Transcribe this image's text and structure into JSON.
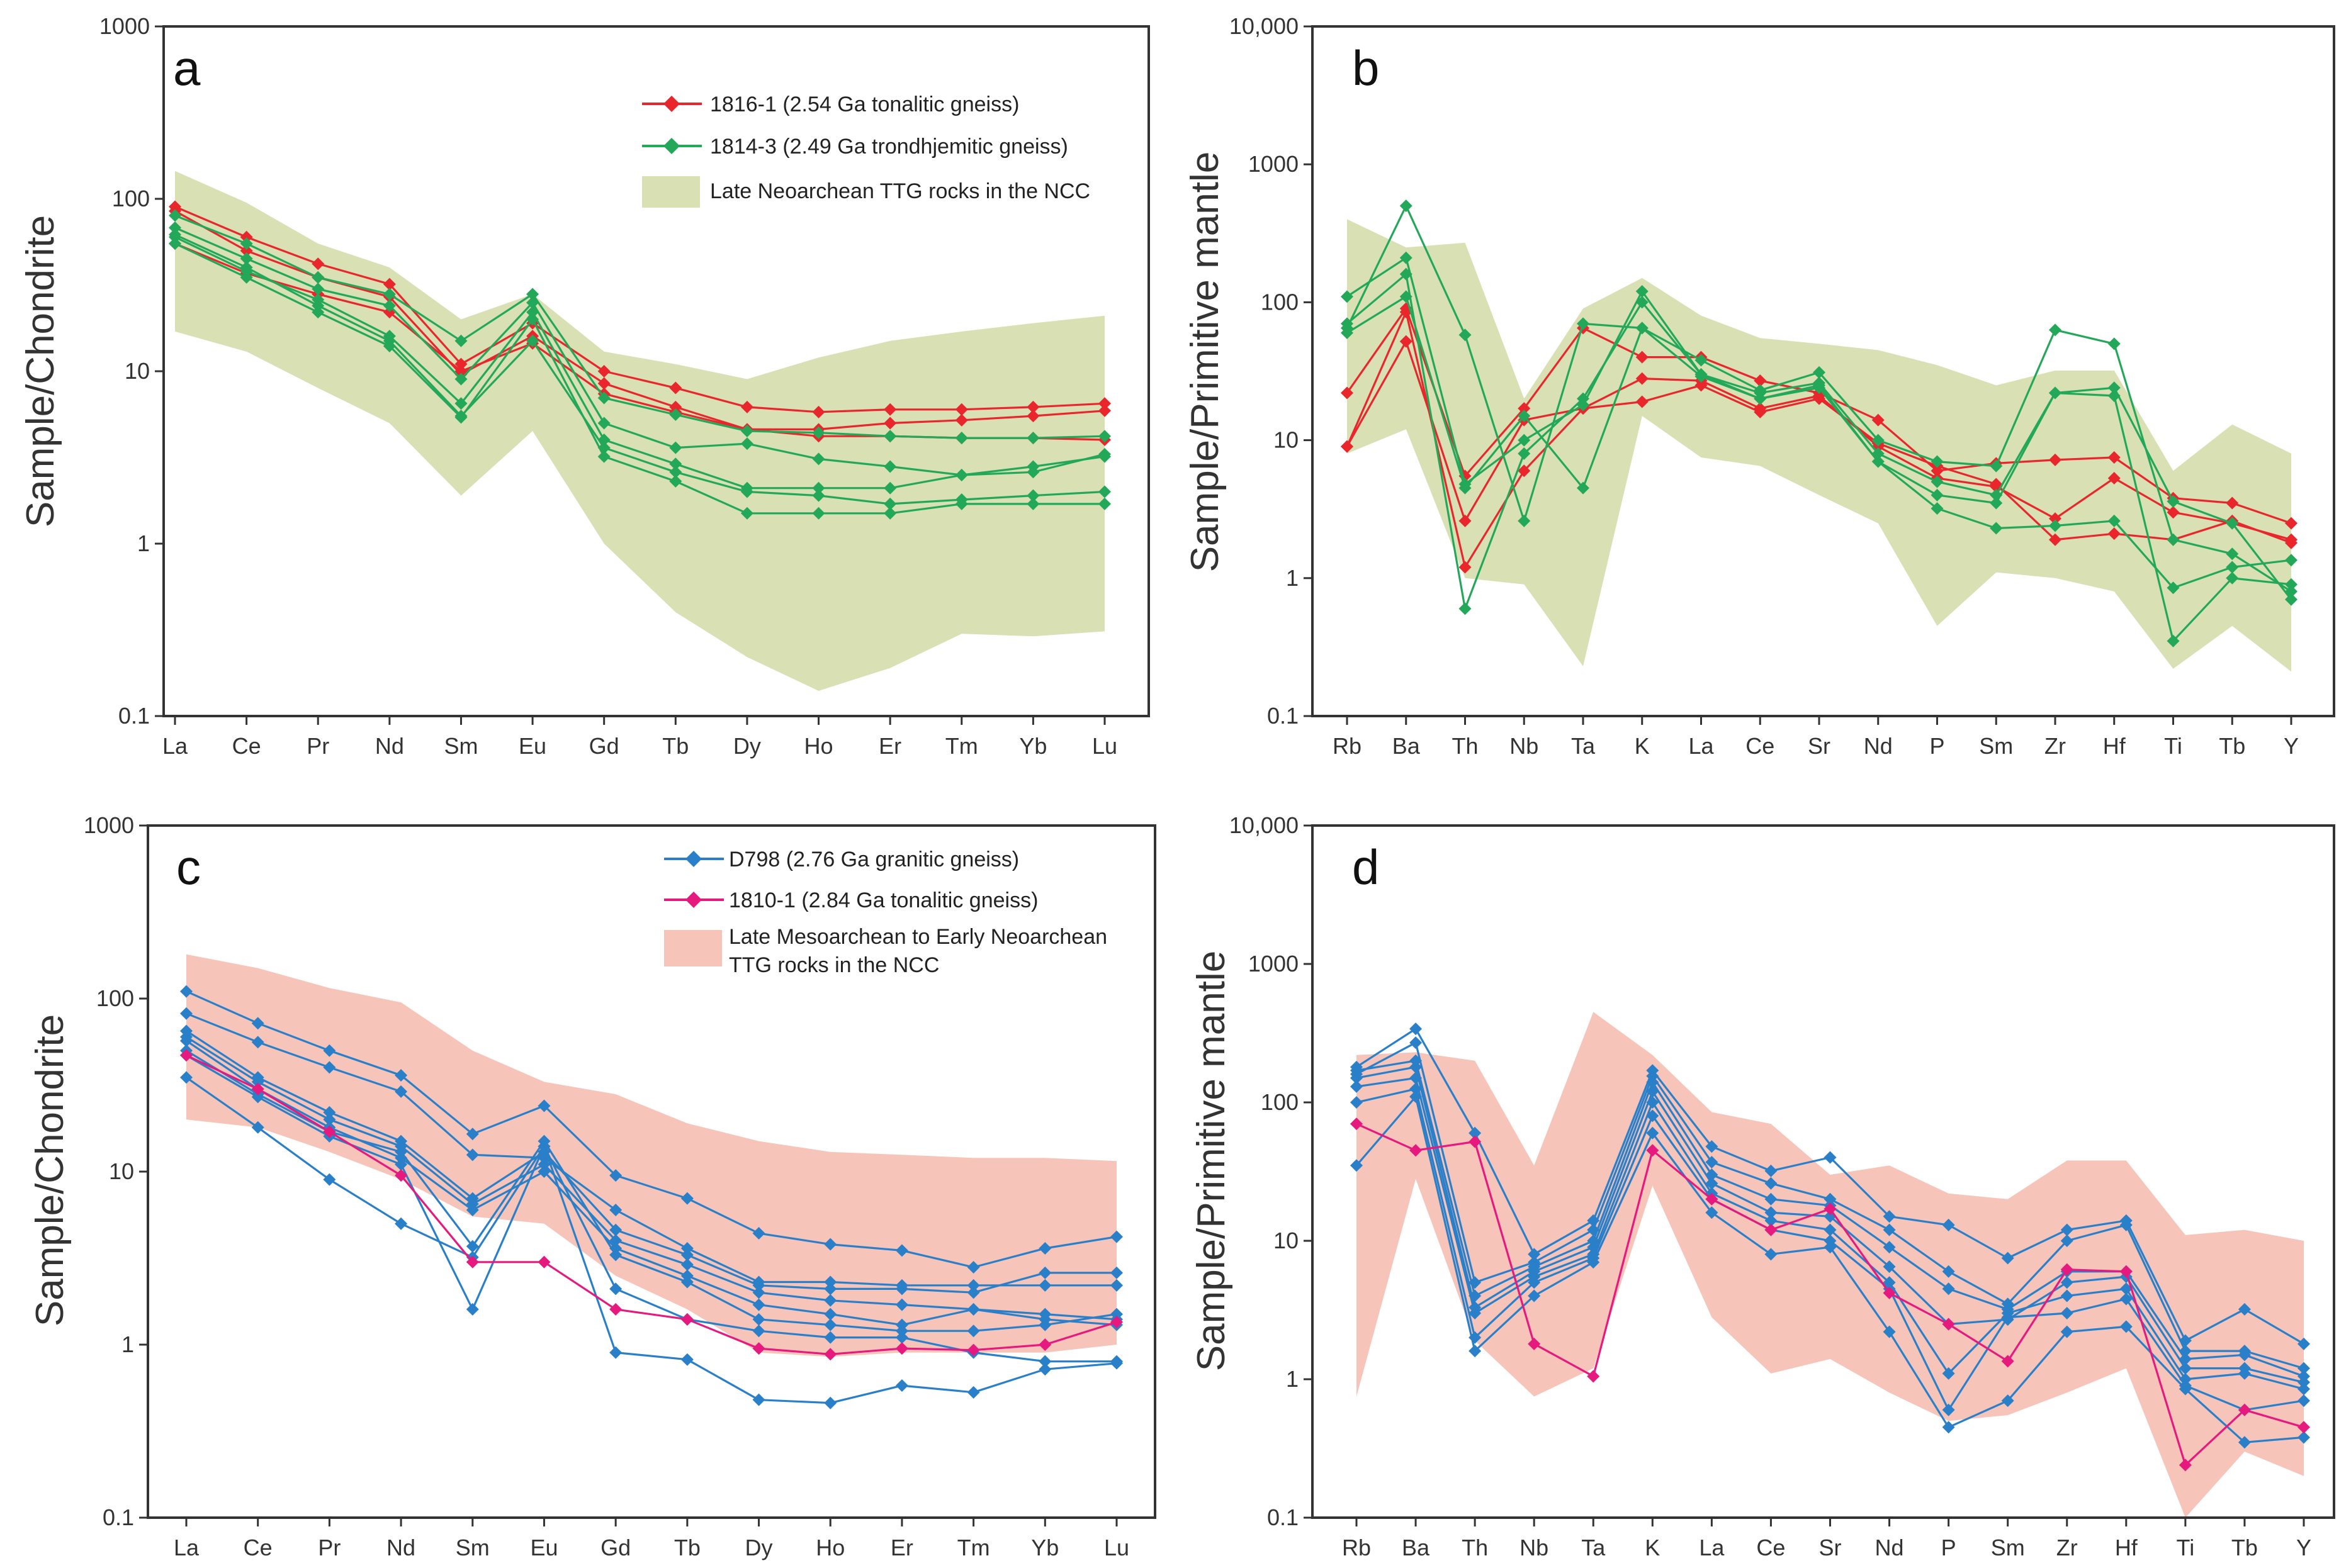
{
  "colors": {
    "red": "#e8262b",
    "green": "#23a85a",
    "blue": "#2a7fc9",
    "magenta": "#e6197f",
    "olive_band": "#d8e0b4",
    "pink_band": "#f7c4ba",
    "frame": "#333333"
  },
  "chart_data": [
    {
      "panel": "a",
      "type": "line",
      "yscale": "log",
      "ylabel": "Sample/Chondrite",
      "y_ticks": [
        "0.1",
        "1",
        "10",
        "100",
        "1000"
      ],
      "ylim": [
        0.1,
        1000
      ],
      "categories": [
        "La",
        "Ce",
        "Pr",
        "Nd",
        "Sm",
        "Eu",
        "Gd",
        "Tb",
        "Dy",
        "Ho",
        "Er",
        "Tm",
        "Yb",
        "Lu"
      ],
      "band": {
        "name": "Late Neoarchean TTG rocks in the NCC",
        "color": "#d8e0b4",
        "upper": [
          145,
          95,
          55,
          40,
          20,
          28,
          13,
          11,
          9,
          12,
          15,
          17,
          19,
          21
        ],
        "lower": [
          17,
          13,
          8,
          5,
          1.9,
          4.5,
          1,
          0.4,
          0.22,
          0.14,
          0.19,
          0.3,
          0.29,
          0.31
        ]
      },
      "legend": [
        {
          "label": "1816-1 (2.54 Ga tonalitic gneiss)",
          "color": "#e8262b",
          "type": "line"
        },
        {
          "label": "1814-3 (2.49 Ga trondhjemitic gneiss)",
          "color": "#23a85a",
          "type": "line"
        },
        {
          "label": "Late Neoarchean TTG rocks in the NCC",
          "color": "#d8e0b4",
          "type": "band"
        }
      ],
      "series": [
        {
          "name": "1816-1",
          "color": "#e8262b",
          "values": [
            90,
            60,
            42,
            32,
            11,
            19,
            10,
            8,
            6.2,
            5.8,
            6,
            6,
            6.2,
            6.5
          ]
        },
        {
          "name": "1816-1",
          "color": "#e8262b",
          "values": [
            85,
            50,
            35,
            27,
            9.6,
            16,
            8.5,
            6.2,
            4.6,
            4.6,
            5,
            5.2,
            5.5,
            5.9
          ]
        },
        {
          "name": "1816-1",
          "color": "#e8262b",
          "values": [
            55,
            37,
            28,
            22,
            10,
            14.5,
            7.4,
            5.8,
            4.6,
            4.2,
            4.2,
            4.1,
            4.1,
            4.0
          ]
        },
        {
          "name": "1814-3",
          "color": "#23a85a",
          "values": [
            80,
            55,
            35,
            28,
            15,
            28,
            7,
            5.6,
            4.5,
            4.4,
            4.2,
            4.1,
            4.1,
            4.2
          ]
        },
        {
          "name": "1814-3",
          "color": "#23a85a",
          "values": [
            68,
            45,
            30,
            24,
            9,
            25,
            5,
            3.6,
            3.8,
            3.1,
            2.8,
            2.5,
            2.8,
            3.2
          ]
        },
        {
          "name": "1814-3",
          "color": "#23a85a",
          "values": [
            60,
            38,
            26,
            16,
            6.5,
            22,
            4,
            2.9,
            2.1,
            2.1,
            2.1,
            2.5,
            2.6,
            3.3
          ]
        },
        {
          "name": "1814-3",
          "color": "#23a85a",
          "values": [
            55,
            35,
            22,
            14,
            5.4,
            20,
            3.2,
            2.3,
            1.5,
            1.5,
            1.5,
            1.7,
            1.7,
            1.7
          ]
        },
        {
          "name": "1814-3",
          "color": "#23a85a",
          "values": [
            62,
            40,
            24,
            15,
            5.5,
            15,
            3.6,
            2.6,
            2.0,
            1.9,
            1.7,
            1.8,
            1.9,
            2.0
          ]
        }
      ]
    },
    {
      "panel": "b",
      "type": "line",
      "yscale": "log",
      "ylabel": "Sample/Primitive mantle",
      "y_ticks": [
        "0.1",
        "1",
        "10",
        "100",
        "1000",
        "10,000"
      ],
      "ylim": [
        0.1,
        10000
      ],
      "categories": [
        "Rb",
        "Ba",
        "Th",
        "Nb",
        "Ta",
        "K",
        "La",
        "Ce",
        "Sr",
        "Nd",
        "P",
        "Sm",
        "Zr",
        "Hf",
        "Ti",
        "Tb",
        "Y"
      ],
      "band": {
        "color": "#d8e0b4",
        "upper": [
          400,
          250,
          270,
          20,
          90,
          150,
          80,
          55,
          50,
          45,
          35,
          25,
          32,
          32,
          6,
          13,
          8
        ],
        "lower": [
          8,
          12,
          1.0,
          0.9,
          0.23,
          15,
          7.5,
          6.5,
          4,
          2.5,
          0.45,
          1.1,
          1.0,
          0.8,
          0.22,
          0.45,
          0.21
        ]
      },
      "series": [
        {
          "name": "1816-1",
          "color": "#e8262b",
          "values": [
            22,
            90,
            5.5,
            17,
            65,
            40,
            40,
            27,
            22,
            14,
            6.0,
            6.8,
            7.2,
            7.5,
            3.8,
            3.5,
            2.5
          ]
        },
        {
          "name": "1816-1",
          "color": "#e8262b",
          "values": [
            9,
            52,
            2.6,
            14,
            17,
            28,
            27,
            17,
            21,
            9,
            5.3,
            4.6,
            2.7,
            5.3,
            3.0,
            2.5,
            1.9
          ]
        },
        {
          "name": "1816-1",
          "color": "#e8262b",
          "values": [
            9,
            85,
            1.2,
            6,
            17,
            19,
            25,
            16,
            20,
            9.5,
            6.5,
            4.8,
            1.9,
            2.1,
            1.9,
            2.6,
            1.8
          ]
        },
        {
          "name": "1814-3",
          "color": "#23a85a",
          "values": [
            65,
            500,
            58,
            2.6,
            70,
            65,
            38,
            23,
            31,
            10,
            7,
            6.5,
            63,
            50,
            1.9,
            1.5,
            0.8
          ]
        },
        {
          "name": "1814-3",
          "color": "#23a85a",
          "values": [
            110,
            210,
            4.8,
            10,
            18,
            120,
            30,
            22,
            26,
            8,
            5,
            4,
            22,
            24,
            3.6,
            2.5,
            0.7
          ]
        },
        {
          "name": "1814-3",
          "color": "#23a85a",
          "values": [
            70,
            160,
            0.6,
            8,
            20,
            100,
            30,
            20,
            25,
            7,
            4,
            3.5,
            22,
            21,
            0.35,
            1.0,
            0.9
          ]
        },
        {
          "name": "1814-3",
          "color": "#23a85a",
          "values": [
            60,
            110,
            4.5,
            15,
            4.5,
            65,
            29,
            20,
            24,
            7,
            3.2,
            2.3,
            2.4,
            2.6,
            0.85,
            1.2,
            1.35
          ]
        }
      ]
    },
    {
      "panel": "c",
      "type": "line",
      "yscale": "log",
      "ylabel": "Sample/Chondrite",
      "y_ticks": [
        "0.1",
        "1",
        "10",
        "100",
        "1000"
      ],
      "ylim": [
        0.1,
        1000
      ],
      "categories": [
        "La",
        "Ce",
        "Pr",
        "Nd",
        "Sm",
        "Eu",
        "Gd",
        "Tb",
        "Dy",
        "Ho",
        "Er",
        "Tm",
        "Yb",
        "Lu"
      ],
      "band": {
        "name": "Late Mesoarchean to Early Neoarchean TTG rocks in the NCC",
        "color": "#f7c4ba",
        "upper": [
          180,
          150,
          115,
          95,
          50,
          33,
          28,
          19,
          15,
          13,
          12.5,
          12,
          12,
          11.5
        ],
        "lower": [
          20,
          18,
          13,
          9,
          5.5,
          5.0,
          2.5,
          1.6,
          0.9,
          0.85,
          0.9,
          0.9,
          0.9,
          1.0
        ]
      },
      "legend": [
        {
          "label": "D798 (2.76 Ga granitic gneiss)",
          "color": "#2a7fc9",
          "type": "line"
        },
        {
          "label": "1810-1 (2.84 Ga tonalitic gneiss)",
          "color": "#e6197f",
          "type": "line"
        },
        {
          "label": "Late Mesoarchean to Early Neoarchean",
          "label2": "TTG rocks in the NCC",
          "color": "#f7c4ba",
          "type": "band"
        }
      ],
      "series": [
        {
          "name": "D798",
          "color": "#2a7fc9",
          "values": [
            110,
            72,
            50,
            36,
            16.5,
            24,
            9.5,
            7,
            4.4,
            3.8,
            3.5,
            2.8,
            3.6,
            4.2
          ]
        },
        {
          "name": "D798",
          "color": "#2a7fc9",
          "values": [
            82,
            56,
            40,
            29,
            12.5,
            12,
            6.0,
            3.6,
            2.3,
            2.3,
            2.2,
            2.2,
            2.2,
            2.2
          ]
        },
        {
          "name": "D798",
          "color": "#2a7fc9",
          "values": [
            65,
            35,
            22,
            15,
            7.0,
            13,
            4.6,
            3.3,
            2.2,
            2.1,
            2.1,
            2.0,
            2.6,
            2.6
          ]
        },
        {
          "name": "D798",
          "color": "#2a7fc9",
          "values": [
            60,
            33,
            20,
            14,
            6.5,
            11,
            4.0,
            2.9,
            2.0,
            1.8,
            1.7,
            1.6,
            1.4,
            1.3
          ]
        },
        {
          "name": "D798",
          "color": "#2a7fc9",
          "values": [
            57,
            30,
            18,
            12,
            6.0,
            10,
            3.6,
            2.5,
            1.7,
            1.5,
            1.3,
            1.6,
            1.5,
            1.4
          ]
        },
        {
          "name": "D798",
          "color": "#2a7fc9",
          "values": [
            50,
            28,
            17,
            13,
            3.7,
            15,
            3.3,
            2.3,
            1.4,
            1.3,
            1.2,
            1.2,
            1.3,
            1.5
          ]
        },
        {
          "name": "D798",
          "color": "#2a7fc9",
          "values": [
            47,
            27,
            16,
            11,
            1.6,
            14,
            2.1,
            1.4,
            1.2,
            1.1,
            1.1,
            0.9,
            0.8,
            0.8
          ]
        },
        {
          "name": "D798",
          "color": "#2a7fc9",
          "values": [
            35,
            18,
            9,
            5,
            3.2,
            14,
            0.9,
            0.82,
            0.48,
            0.46,
            0.58,
            0.53,
            0.72,
            0.78
          ]
        },
        {
          "name": "1810-1",
          "color": "#e6197f",
          "values": [
            47,
            30,
            17,
            9.5,
            3.0,
            3.0,
            1.6,
            1.4,
            0.95,
            0.88,
            0.95,
            0.93,
            1.0,
            1.35
          ]
        }
      ]
    },
    {
      "panel": "d",
      "type": "line",
      "yscale": "log",
      "ylabel": "Sample/Primitive mantle",
      "y_ticks": [
        "0.1",
        "1",
        "10",
        "100",
        "1000",
        "10,000"
      ],
      "ylim": [
        0.1,
        10000
      ],
      "categories": [
        "Rb",
        "Ba",
        "Th",
        "Nb",
        "Ta",
        "K",
        "La",
        "Ce",
        "Sr",
        "Nd",
        "P",
        "Sm",
        "Zr",
        "Hf",
        "Ti",
        "Tb",
        "Y"
      ],
      "band": {
        "color": "#f7c4ba",
        "upper": [
          220,
          230,
          200,
          35,
          450,
          220,
          85,
          70,
          30,
          35,
          22,
          20,
          38,
          38,
          11,
          12,
          10
        ],
        "lower": [
          0.75,
          28,
          1.9,
          0.75,
          1.2,
          25,
          2.8,
          1.1,
          1.4,
          0.8,
          0.5,
          0.55,
          0.8,
          1.2,
          0.1,
          0.3,
          0.2
        ]
      },
      "series": [
        {
          "name": "D798",
          "color": "#2a7fc9",
          "values": [
            180,
            340,
            60,
            8,
            14,
            170,
            48,
            32,
            40,
            15,
            13,
            7.5,
            12,
            14,
            1.9,
            3.2,
            1.8
          ]
        },
        {
          "name": "D798",
          "color": "#2a7fc9",
          "values": [
            160,
            270,
            5,
            7,
            12,
            155,
            37,
            26,
            20,
            12,
            6,
            3.5,
            10,
            13,
            1.6,
            1.6,
            1.2
          ]
        },
        {
          "name": "D798",
          "color": "#2a7fc9",
          "values": [
            170,
            200,
            4,
            6.5,
            10,
            140,
            30,
            20,
            18,
            9,
            4.5,
            3.2,
            6,
            6,
            1.4,
            1.5,
            1.05
          ]
        },
        {
          "name": "D798",
          "color": "#2a7fc9",
          "values": [
            150,
            180,
            3.3,
            6,
            9,
            120,
            26,
            16,
            15,
            6.5,
            2.5,
            2.7,
            5,
            5.5,
            1.2,
            1.2,
            0.95
          ]
        },
        {
          "name": "D798",
          "color": "#2a7fc9",
          "values": [
            130,
            150,
            3,
            5.5,
            8,
            100,
            22,
            14,
            12,
            5,
            1.1,
            3,
            4,
            4.5,
            1.0,
            1.1,
            0.85
          ]
        },
        {
          "name": "D798",
          "color": "#2a7fc9",
          "values": [
            100,
            125,
            2,
            5,
            7.5,
            80,
            20,
            12,
            10,
            4.5,
            0.6,
            2.8,
            3,
            3.8,
            0.9,
            0.6,
            0.7
          ]
        },
        {
          "name": "D798",
          "color": "#2a7fc9",
          "values": [
            35,
            110,
            1.6,
            4,
            7,
            60,
            16,
            8,
            9,
            2.2,
            0.45,
            0.7,
            2.2,
            2.4,
            0.85,
            0.35,
            0.38
          ]
        },
        {
          "name": "1810-1",
          "color": "#e6197f",
          "values": [
            70,
            45,
            52,
            1.8,
            1.05,
            45,
            20,
            12,
            17,
            4.2,
            2.5,
            1.35,
            6.2,
            6.0,
            0.24,
            0.6,
            0.45
          ]
        }
      ]
    }
  ]
}
